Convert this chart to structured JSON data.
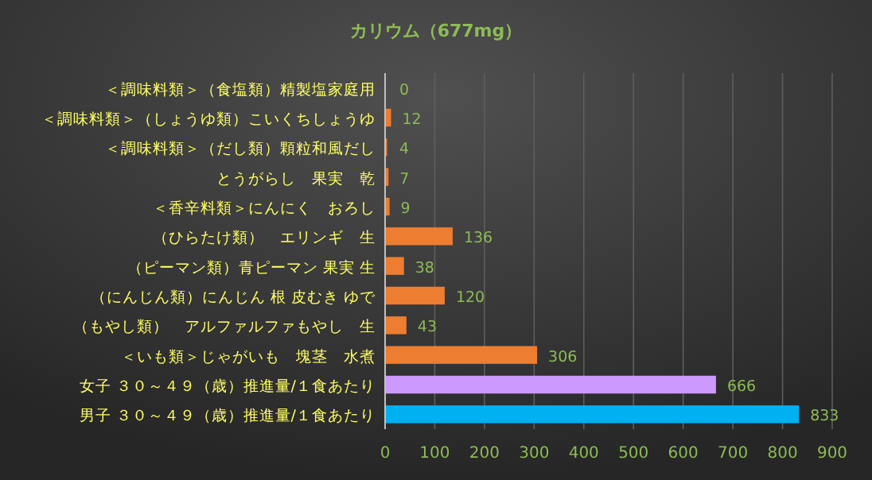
{
  "chart_data": {
    "type": "bar",
    "orientation": "horizontal",
    "title": "カリウム（677mg）",
    "categories": [
      "＜調味料類＞（食塩類）精製塩家庭用",
      "＜調味料類＞（しょうゆ類）こいくちしょうゆ",
      "＜調味料類＞（だし類）顆粒和風だし",
      "とうがらし　果実　乾",
      "＜香辛料類＞にんにく　おろし",
      "（ひらたけ類）　エリンギ　生",
      "（ピーマン類）青ピーマン 果実 生",
      "（にんじん類）にんじん 根 皮むき ゆで",
      "（もやし類）　アルファルファもやし　生",
      "＜いも類＞じゃがいも　塊茎　水煮",
      "女子 ３０～４９（歳）推進量/１食あたり",
      "男子 ３０～４９（歳）推進量/１食あたり"
    ],
    "values": [
      0,
      12,
      4,
      7,
      9,
      136,
      38,
      120,
      43,
      306,
      666,
      833
    ],
    "colors": [
      "#ed7d31",
      "#ed7d31",
      "#ed7d31",
      "#ed7d31",
      "#ed7d31",
      "#ed7d31",
      "#ed7d31",
      "#ed7d31",
      "#ed7d31",
      "#ed7d31",
      "#cc99ff",
      "#00b0f0"
    ],
    "xlim": [
      0,
      900
    ],
    "xticks": [
      0,
      100,
      200,
      300,
      400,
      500,
      600,
      700,
      800,
      900
    ],
    "grid": "x",
    "data_labels": true
  }
}
